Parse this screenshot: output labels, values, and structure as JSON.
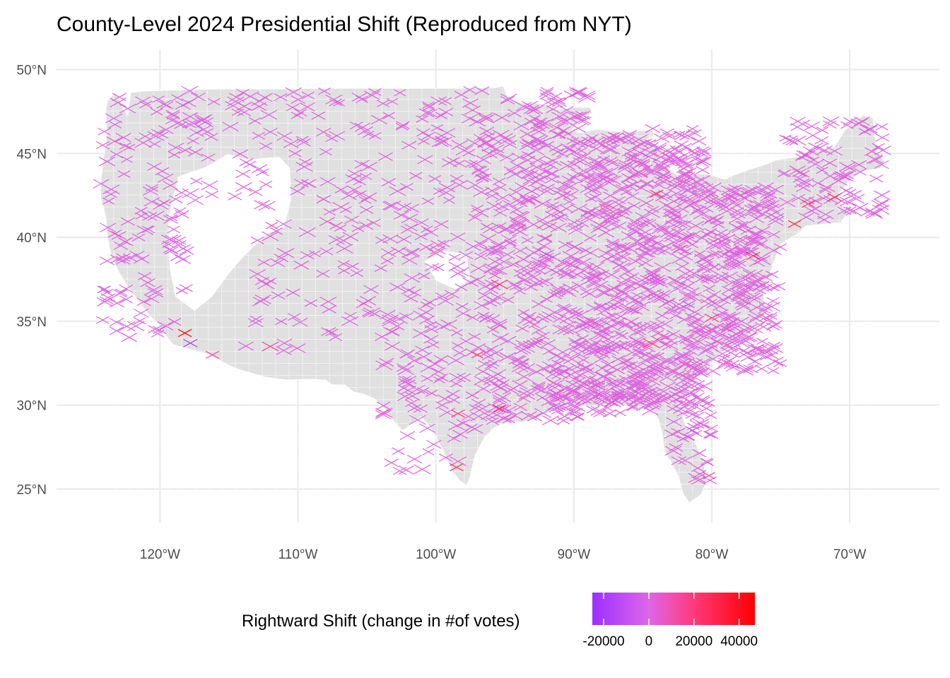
{
  "title": "County-Level 2024 Presidential Shift (Reproduced from NYT)",
  "chart_data": {
    "type": "scatter",
    "marker": "x",
    "projection": "equirectangular",
    "xlim": [
      -127.5,
      -63.5
    ],
    "ylim": [
      23.0,
      51.2
    ],
    "x_ticks": [
      -120,
      -110,
      -100,
      -90,
      -80,
      -70
    ],
    "x_tick_labels": [
      "120°W",
      "110°W",
      "100°W",
      "90°W",
      "80°W",
      "70°W"
    ],
    "y_ticks": [
      25,
      30,
      35,
      40,
      45,
      50
    ],
    "y_tick_labels": [
      "25°N",
      "30°N",
      "35°N",
      "40°N",
      "45°N",
      "50°N"
    ],
    "grid": true,
    "background_map": "US county polygons, light grey (#e0e0e0) with white borders",
    "color_scale": {
      "title": "Rightward Shift (change in #of votes)",
      "min": -25000,
      "max": 47000,
      "stops": [
        {
          "value": -25000,
          "color": "#9b30ff"
        },
        {
          "value": 0,
          "color": "#dd66e8"
        },
        {
          "value": 20000,
          "color": "#ff3a78"
        },
        {
          "value": 47000,
          "color": "#ff0000"
        }
      ],
      "breaks": [
        -20000,
        0,
        20000,
        40000
      ],
      "break_labels": [
        "-20000",
        "0",
        "20000",
        "40000"
      ]
    },
    "typical_value": 1200,
    "notable_points": [
      {
        "x": -118.2,
        "y": 34.3,
        "shift": 45000
      },
      {
        "x": -117.8,
        "y": 33.7,
        "shift": -20000
      },
      {
        "x": -116.2,
        "y": 33.0,
        "shift": 12000
      },
      {
        "x": -98.5,
        "y": 26.3,
        "shift": 26000
      },
      {
        "x": -98.4,
        "y": 29.5,
        "shift": 18000
      },
      {
        "x": -97.0,
        "y": 33.0,
        "shift": 24000
      },
      {
        "x": -95.4,
        "y": 29.8,
        "shift": 30000
      },
      {
        "x": -95.4,
        "y": 37.2,
        "shift": 22000
      },
      {
        "x": -84.0,
        "y": 42.6,
        "shift": 25000
      },
      {
        "x": -84.4,
        "y": 33.7,
        "shift": 20000
      },
      {
        "x": -80.0,
        "y": 35.2,
        "shift": 22000
      },
      {
        "x": -77.0,
        "y": 38.9,
        "shift": 28000
      },
      {
        "x": -74.0,
        "y": 40.8,
        "shift": 32000
      },
      {
        "x": -73.0,
        "y": 42.0,
        "shift": 24000
      },
      {
        "x": -71.1,
        "y": 42.4,
        "shift": 26000
      },
      {
        "x": -87.7,
        "y": 41.8,
        "shift": 12000
      },
      {
        "x": -92.0,
        "y": 39.0,
        "shift": -8000
      },
      {
        "x": -81.4,
        "y": 28.5,
        "shift": -12000
      },
      {
        "x": -81.7,
        "y": 36.0,
        "shift": -9000
      },
      {
        "x": -72.0,
        "y": 44.0,
        "shift": -6000
      },
      {
        "x": -93.3,
        "y": 44.9,
        "shift": -5000
      },
      {
        "x": -112.0,
        "y": 33.5,
        "shift": 14000
      },
      {
        "x": -111.9,
        "y": 40.7,
        "shift": 9000
      },
      {
        "x": -80.2,
        "y": 25.8,
        "shift": 16000
      }
    ]
  }
}
